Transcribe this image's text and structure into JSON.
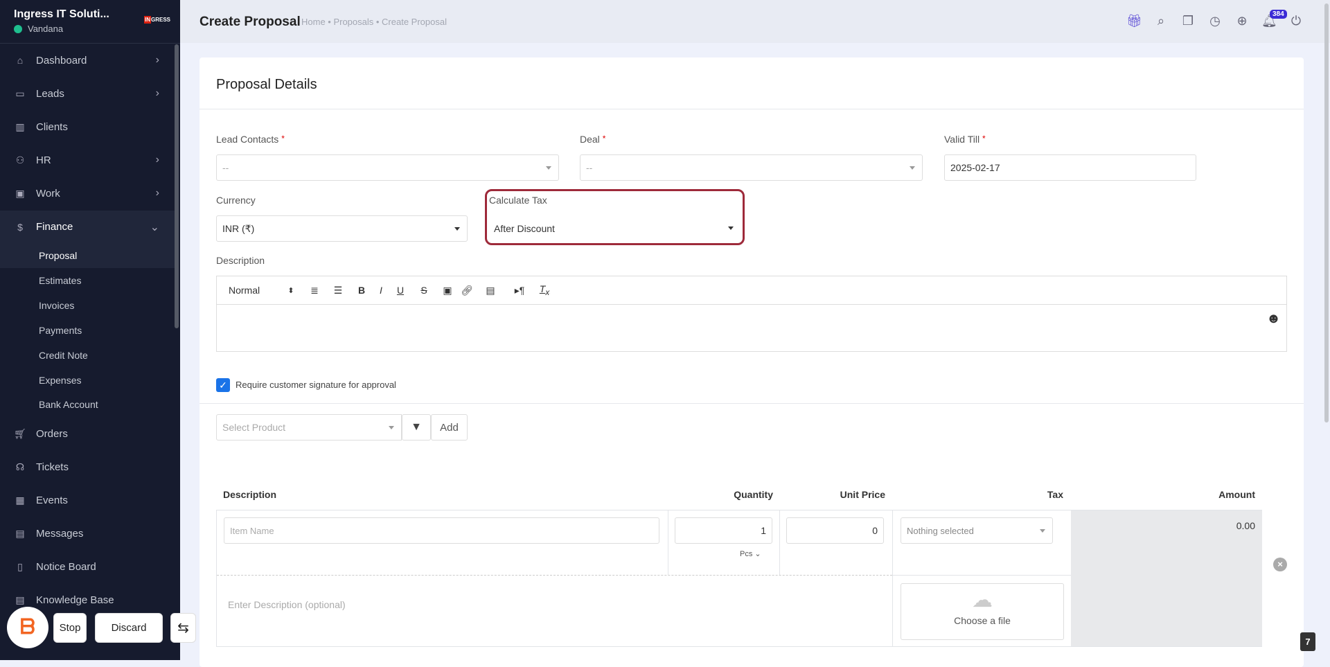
{
  "sidebar": {
    "company": "Ingress IT Soluti...",
    "user": "Vandana",
    "logo_text": "INGRESS",
    "items": [
      {
        "label": "Dashboard",
        "icon": "home-icon",
        "chevron": true
      },
      {
        "label": "Leads",
        "icon": "contact-card-icon",
        "chevron": true
      },
      {
        "label": "Clients",
        "icon": "building-icon",
        "chevron": false
      },
      {
        "label": "HR",
        "icon": "users-icon",
        "chevron": true
      },
      {
        "label": "Work",
        "icon": "briefcase-icon",
        "chevron": true
      },
      {
        "label": "Finance",
        "icon": "dollar-icon",
        "chevron": true,
        "active": true
      }
    ],
    "finance_sub": [
      "Proposal",
      "Estimates",
      "Invoices",
      "Payments",
      "Credit Note",
      "Expenses",
      "Bank Account"
    ],
    "items2": [
      {
        "label": "Orders",
        "icon": "cart-icon"
      },
      {
        "label": "Tickets",
        "icon": "headset-icon"
      },
      {
        "label": "Events",
        "icon": "calendar-icon"
      },
      {
        "label": "Messages",
        "icon": "message-icon"
      },
      {
        "label": "Notice Board",
        "icon": "clipboard-icon"
      },
      {
        "label": "Knowledge Base",
        "icon": "document-icon"
      }
    ]
  },
  "header": {
    "title": "Create Proposal",
    "breadcrumb": "Home • Proposals • Create Proposal",
    "notification_count": "384"
  },
  "form": {
    "card_title": "Proposal Details",
    "lead_contacts": {
      "label": "Lead Contacts",
      "value": "--"
    },
    "deal": {
      "label": "Deal",
      "value": "--"
    },
    "valid_till": {
      "label": "Valid Till",
      "value": "2025-02-17"
    },
    "currency": {
      "label": "Currency",
      "value": "INR (₹)"
    },
    "calculate_tax": {
      "label": "Calculate Tax",
      "value": "After Discount"
    },
    "description_label": "Description",
    "editor_format": "Normal",
    "signature_label": "Require customer signature for approval",
    "signature_checked": true,
    "select_product_placeholder": "Select Product",
    "add_label": "Add"
  },
  "table": {
    "headers": [
      "Description",
      "Quantity",
      "Unit Price",
      "Tax",
      "Amount"
    ],
    "row": {
      "item_placeholder": "Item Name",
      "quantity": "1",
      "unit": "Pcs",
      "unit_price": "0",
      "tax_placeholder": "Nothing selected",
      "amount": "0.00",
      "desc_placeholder": "Enter Description (optional)",
      "file_label": "Choose a file"
    }
  },
  "overlay": {
    "stop": "Stop",
    "discard": "Discard",
    "page_badge": "7"
  },
  "colors": {
    "sidebar": "#161b2e",
    "accent": "#1a73e8",
    "highlight": "#9e2a3a",
    "badge": "#3b2bd6"
  }
}
